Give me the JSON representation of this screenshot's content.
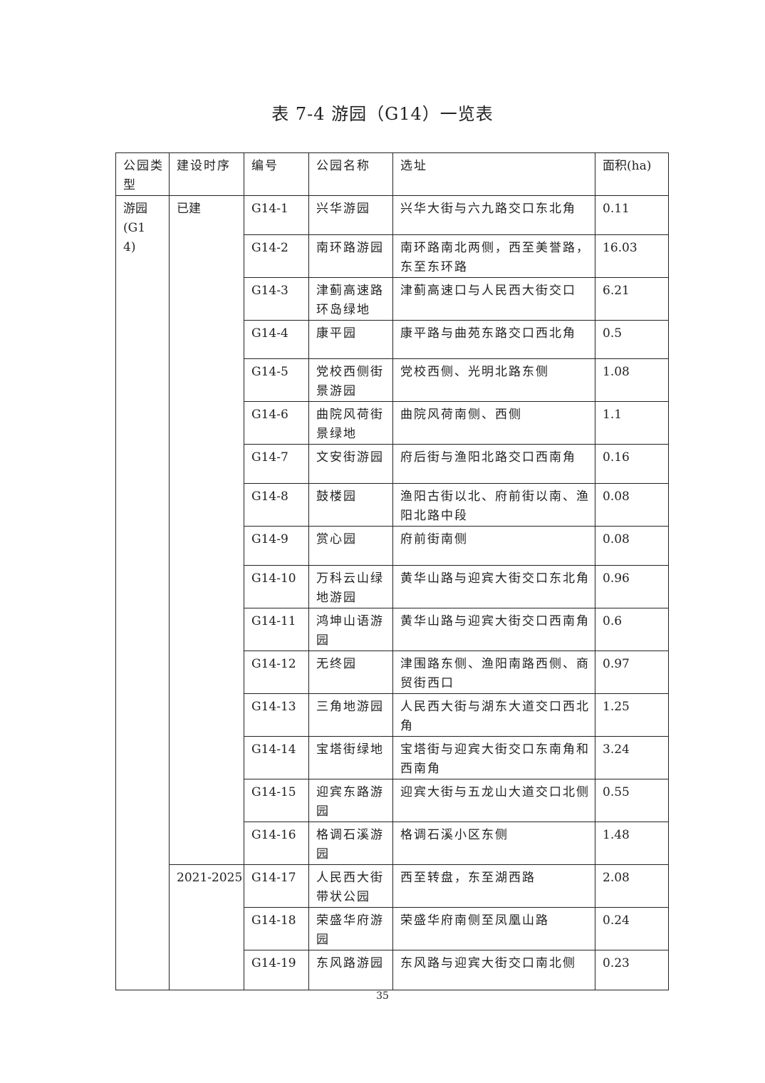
{
  "title": "表 7-4 游园（G14）一览表",
  "headers": [
    "公园类型",
    "建设时序",
    "编号",
    "公园名称",
    "选址",
    "面积(ha)"
  ],
  "park_type": "游园(G14)",
  "phases": [
    {
      "label": "已建",
      "count": 16
    },
    {
      "label": "2021-2025",
      "count": 3
    }
  ],
  "rows": [
    {
      "id": "G14-1",
      "name": "兴华游园",
      "location": "兴华大街与六九路交口东北角",
      "area": "0.11"
    },
    {
      "id": "G14-2",
      "name": "南环路游园",
      "location": "南环路南北两侧，西至美誉路，东至东环路",
      "area": "16.03"
    },
    {
      "id": "G14-3",
      "name": "津蓟高速路环岛绿地",
      "location": "津蓟高速口与人民西大街交口",
      "area": "6.21"
    },
    {
      "id": "G14-4",
      "name": "康平园",
      "location": "康平路与曲苑东路交口西北角",
      "area": "0.5"
    },
    {
      "id": "G14-5",
      "name": "党校西侧街景游园",
      "location": "党校西侧、光明北路东侧",
      "area": "1.08"
    },
    {
      "id": "G14-6",
      "name": "曲院风荷街景绿地",
      "location": "曲院风荷南侧、西侧",
      "area": "1.1"
    },
    {
      "id": "G14-7",
      "name": "文安街游园",
      "location": "府后街与渔阳北路交口西南角",
      "area": "0.16"
    },
    {
      "id": "G14-8",
      "name": "鼓楼园",
      "location": "渔阳古街以北、府前街以南、渔阳北路中段",
      "area": "0.08"
    },
    {
      "id": "G14-9",
      "name": "赏心园",
      "location": "府前街南侧",
      "area": "0.08"
    },
    {
      "id": "G14-10",
      "name": "万科云山绿地游园",
      "location": "黄华山路与迎宾大街交口东北角",
      "area": "0.96"
    },
    {
      "id": "G14-11",
      "name": "鸿坤山语游园",
      "location": "黄华山路与迎宾大街交口西南角",
      "area": "0.6"
    },
    {
      "id": "G14-12",
      "name": "无终园",
      "location": "津围路东侧、渔阳南路西侧、商贸街西口",
      "area": "0.97"
    },
    {
      "id": "G14-13",
      "name": "三角地游园",
      "location": "人民西大街与湖东大道交口西北角",
      "area": "1.25"
    },
    {
      "id": "G14-14",
      "name": "宝塔街绿地",
      "location": "宝塔街与迎宾大街交口东南角和西南角",
      "area": "3.24"
    },
    {
      "id": "G14-15",
      "name": "迎宾东路游园",
      "location": "迎宾大街与五龙山大道交口北侧",
      "area": "0.55"
    },
    {
      "id": "G14-16",
      "name": "格调石溪游园",
      "location": "格调石溪小区东侧",
      "area": "1.48"
    },
    {
      "id": "G14-17",
      "name": "人民西大街带状公园",
      "location": "西至转盘，东至湖西路",
      "area": "2.08"
    },
    {
      "id": "G14-18",
      "name": "荣盛华府游园",
      "location": "荣盛华府南侧至凤凰山路",
      "area": "0.24"
    },
    {
      "id": "G14-19",
      "name": "东风路游园",
      "location": "东风路与迎宾大街交口南北侧",
      "area": "0.23"
    }
  ],
  "page_number": "35"
}
